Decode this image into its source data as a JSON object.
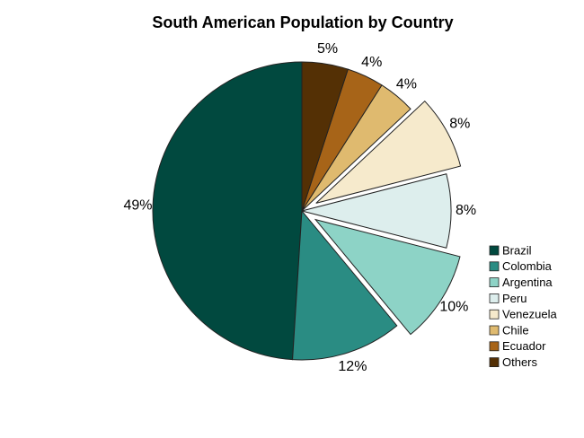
{
  "chart_data": {
    "type": "pie",
    "title": "South American Population by Country",
    "categories": [
      "Brazil",
      "Colombia",
      "Argentina",
      "Peru",
      "Venezuela",
      "Chile",
      "Ecuador",
      "Others"
    ],
    "values": [
      49,
      12,
      10,
      8,
      8,
      4,
      4,
      5
    ],
    "value_labels": [
      "49%",
      "12%",
      "10%",
      "8%",
      "8%",
      "4%",
      "4%",
      "5%"
    ],
    "exploded": [
      false,
      false,
      true,
      false,
      true,
      false,
      false,
      false
    ],
    "colors": [
      "#01493f",
      "#2a8c83",
      "#8dd3c6",
      "#ddeeed",
      "#f6eacc",
      "#dfba6f",
      "#a76418",
      "#543005"
    ],
    "start_angle": "top, counterclockwise",
    "legend_position": "right"
  }
}
